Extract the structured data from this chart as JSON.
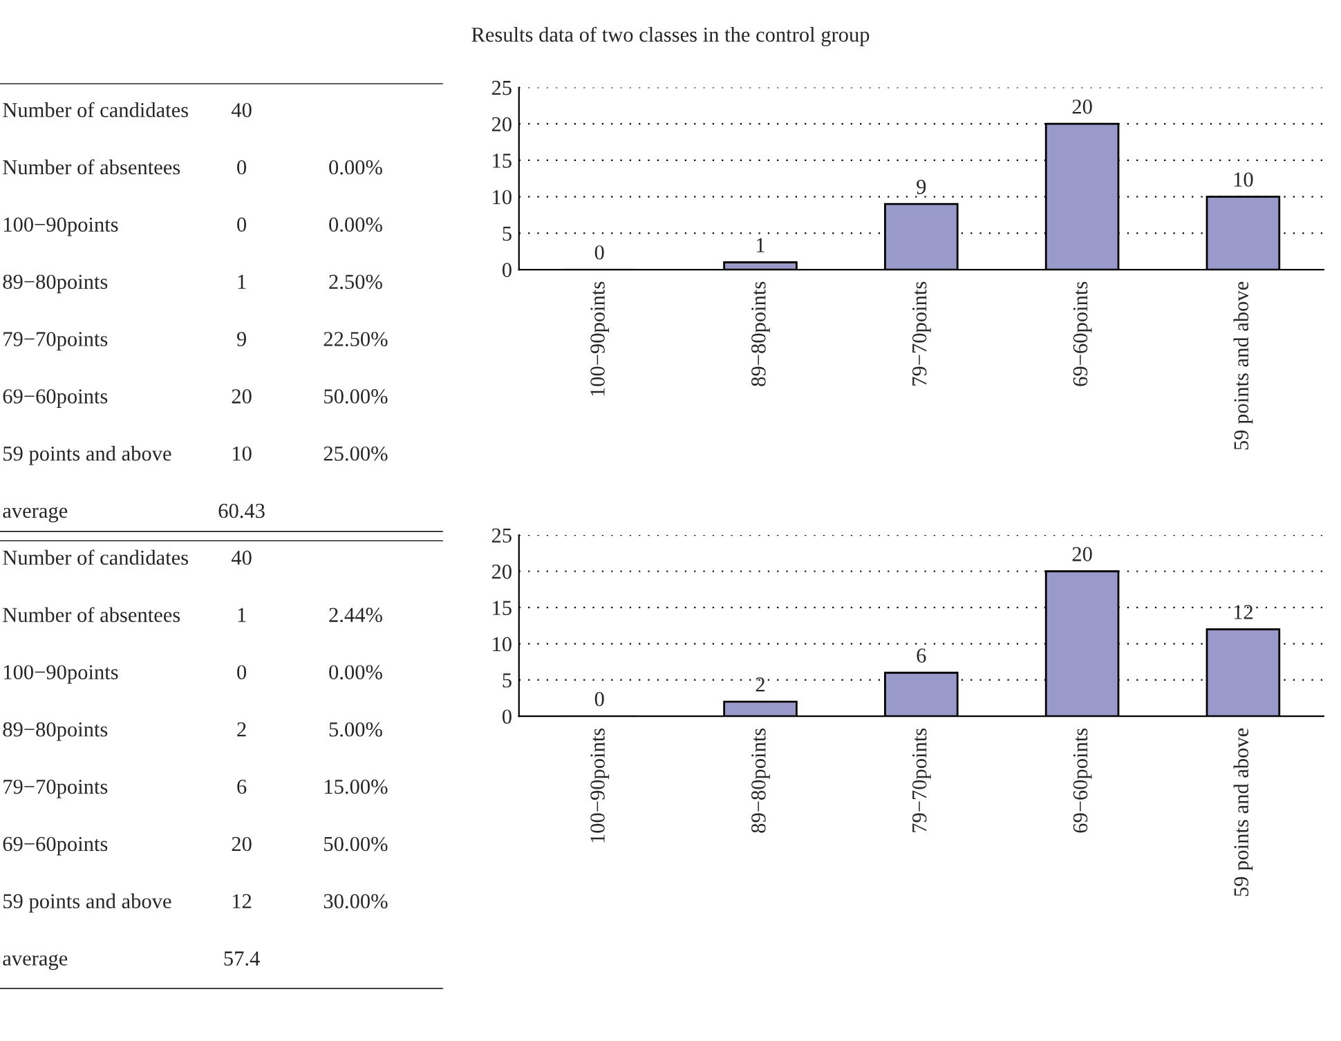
{
  "chart_data": [
    {
      "type": "other",
      "title": "Results data of two classes in the control group",
      "cell_labels": [
        [
          "Number of candidates",
          "40",
          null
        ],
        [
          "Number of absentees",
          "0",
          "0.00%"
        ],
        [
          "100−90points",
          "0",
          "0.00%"
        ],
        [
          "89−80points",
          "1",
          "2.50%"
        ],
        [
          "79−70points",
          "9",
          "22.50%"
        ],
        [
          "69−60points",
          "20",
          "50.00%"
        ],
        [
          "59 points and above",
          "10",
          "25.00%"
        ],
        [
          "average",
          "60.43",
          null
        ]
      ]
    },
    {
      "type": "bar",
      "categories": [
        "100−90points",
        "89−80points",
        "79−70points",
        "69−60points",
        "59 points and above"
      ],
      "values": [
        0,
        1,
        9,
        20,
        10
      ],
      "color": "#9999cc",
      "ylim": [
        0,
        25
      ],
      "yticks": [
        0,
        5,
        10,
        15,
        20,
        25
      ],
      "grid": "y",
      "data_labels": true
    },
    {
      "type": "other",
      "cell_labels": [
        [
          "Number of candidates",
          "40",
          null
        ],
        [
          "Number of absentees",
          "1",
          "2.44%"
        ],
        [
          "100−90points",
          "0",
          "0.00%"
        ],
        [
          "89−80points",
          "2",
          "5.00%"
        ],
        [
          "79−70points",
          "6",
          "15.00%"
        ],
        [
          "69−60points",
          "20",
          "50.00%"
        ],
        [
          "59 points and above",
          "12",
          "30.00%"
        ],
        [
          "average",
          "57.4",
          null
        ]
      ]
    },
    {
      "type": "bar",
      "categories": [
        "100−90points",
        "89−80points",
        "79−70points",
        "69−60points",
        "59 points and above"
      ],
      "values": [
        0,
        2,
        6,
        20,
        12
      ],
      "color": "#9999cc",
      "ylim": [
        0,
        25
      ],
      "yticks": [
        0,
        5,
        10,
        15,
        20,
        25
      ],
      "grid": "y",
      "data_labels": true
    }
  ]
}
